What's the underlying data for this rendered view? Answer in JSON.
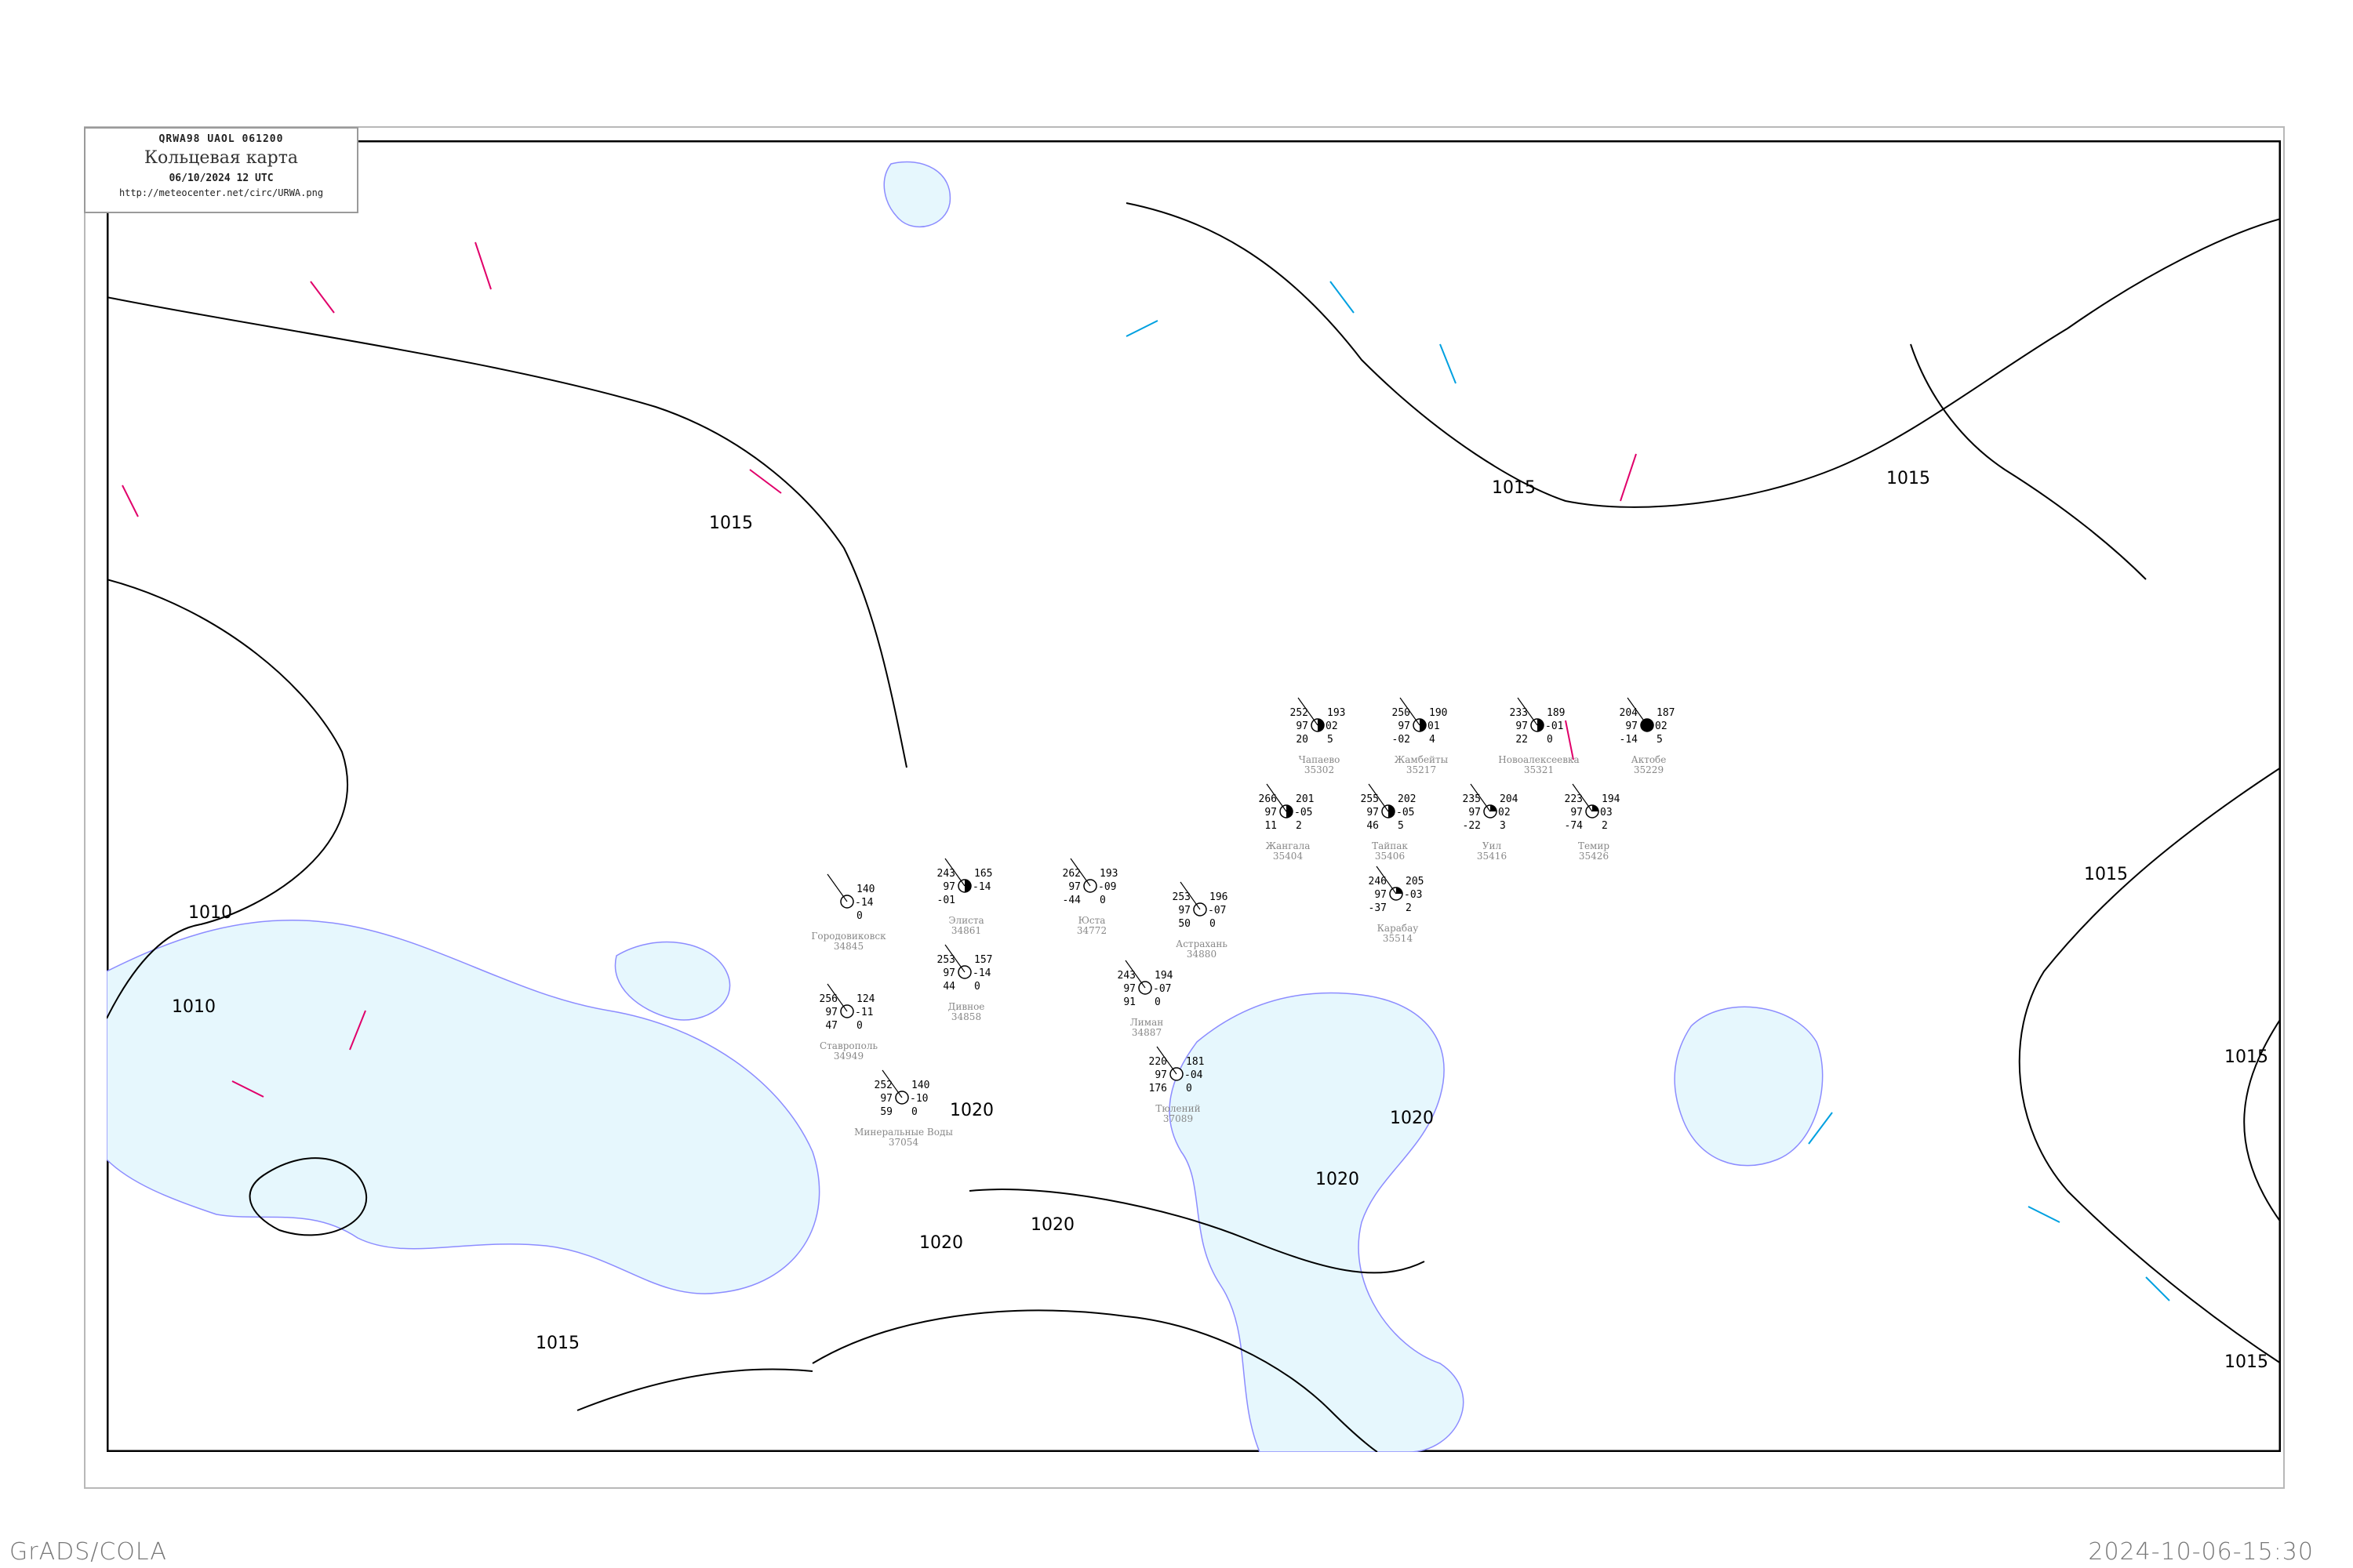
{
  "header": {
    "code": "QRWA98   UAOL   061200",
    "title": "Кольцевая карта",
    "datetime": "06/10/2024 12 UTC",
    "url": "http://meteocenter.net/circ/URWA.png"
  },
  "footer": {
    "left": "GrADS/COLA",
    "right": "2024-10-06-15:30"
  },
  "colors": {
    "water": "#e6f7fd",
    "coast": "#8c8cff",
    "isobar": "#000000",
    "front_red": "#e0006a",
    "front_blue": "#00a0e0",
    "station_name": "#888888"
  },
  "isobar_labels": [
    {
      "text": "1010"
    },
    {
      "text": "1010"
    },
    {
      "text": "1015"
    },
    {
      "text": "1015"
    },
    {
      "text": "1015"
    },
    {
      "text": "1015"
    },
    {
      "text": "1015"
    },
    {
      "text": "1015"
    },
    {
      "text": "1015"
    },
    {
      "text": "1020"
    },
    {
      "text": "1020"
    },
    {
      "text": "1020"
    },
    {
      "text": "1020"
    },
    {
      "text": "1020"
    }
  ],
  "stations": [
    {
      "name": "Элиста",
      "id": "34861",
      "pressure": "243",
      "temp": "97",
      "dew": "-01",
      "tend": "165",
      "dp": "-14",
      "extra": "",
      "cover": "half"
    },
    {
      "name": "Дивное",
      "id": "34858",
      "pressure": "253",
      "temp": "97",
      "dew": "44",
      "tend": "157",
      "dp": "-14",
      "extra": "0",
      "cover": "clear"
    },
    {
      "name": "Городовиковск",
      "id": "34845",
      "pressure": "",
      "temp": "",
      "dew": "",
      "tend": "140",
      "dp": "-14",
      "extra": "0",
      "cover": "clear"
    },
    {
      "name": "Юста",
      "id": "34772",
      "pressure": "262",
      "temp": "97",
      "dew": "-44",
      "tend": "193",
      "dp": "-09",
      "extra": "0",
      "cover": "clear"
    },
    {
      "name": "Астрахань",
      "id": "34880",
      "pressure": "253",
      "temp": "97",
      "dew": "50",
      "tend": "196",
      "dp": "-07",
      "extra": "0",
      "cover": "clear"
    },
    {
      "name": "Лиман",
      "id": "34887",
      "pressure": "243",
      "temp": "97",
      "dew": "91",
      "tend": "194",
      "dp": "-07",
      "extra": "0",
      "cover": "clear"
    },
    {
      "name": "Тюлений",
      "id": "37089",
      "pressure": "220",
      "temp": "97",
      "dew": "176",
      "tend": "181",
      "dp": "-04",
      "extra": "0",
      "cover": "clear"
    },
    {
      "name": "Ставрополь",
      "id": "34949",
      "pressure": "256",
      "temp": "97",
      "dew": "47",
      "tend": "124",
      "dp": "-11",
      "extra": "0",
      "cover": "clear"
    },
    {
      "name": "Минеральные Воды",
      "id": "37054",
      "pressure": "252",
      "temp": "97",
      "dew": "59",
      "tend": "140",
      "dp": "-10",
      "extra": "0",
      "cover": "clear"
    },
    {
      "name": "Чапаево",
      "id": "35302",
      "pressure": "252",
      "temp": "97",
      "dew": "20",
      "tend": "193",
      "dp": "02",
      "extra": "5",
      "cover": "half"
    },
    {
      "name": "Жамбейты",
      "id": "35217",
      "pressure": "250",
      "temp": "97",
      "dew": "-02",
      "tend": "190",
      "dp": "01",
      "extra": "4",
      "cover": "half"
    },
    {
      "name": "Новоалексеевка",
      "id": "35321",
      "pressure": "233",
      "temp": "97",
      "dew": "22",
      "tend": "189",
      "dp": "-01",
      "extra": "0",
      "cover": "half"
    },
    {
      "name": "Актобе",
      "id": "35229",
      "pressure": "204",
      "temp": "97",
      "dew": "-14",
      "tend": "187",
      "dp": "02",
      "extra": "5",
      "cover": "full"
    },
    {
      "name": "Жангала",
      "id": "35404",
      "pressure": "266",
      "temp": "97",
      "dew": "11",
      "tend": "201",
      "dp": "-05",
      "extra": "2",
      "cover": "half"
    },
    {
      "name": "Тайпак",
      "id": "35406",
      "pressure": "255",
      "temp": "97",
      "dew": "46",
      "tend": "202",
      "dp": "-05",
      "extra": "5",
      "cover": "half"
    },
    {
      "name": "Уил",
      "id": "35416",
      "pressure": "235",
      "temp": "97",
      "dew": "-22",
      "tend": "204",
      "dp": "02",
      "extra": "3",
      "cover": "quarter"
    },
    {
      "name": "Темир",
      "id": "35426",
      "pressure": "223",
      "temp": "97",
      "dew": "-74",
      "tend": "194",
      "dp": "03",
      "extra": "2",
      "cover": "quarter"
    },
    {
      "name": "Карабау",
      "id": "35514",
      "pressure": "246",
      "temp": "97",
      "dew": "-37",
      "tend": "205",
      "dp": "-03",
      "extra": "2",
      "cover": "quarter"
    }
  ]
}
